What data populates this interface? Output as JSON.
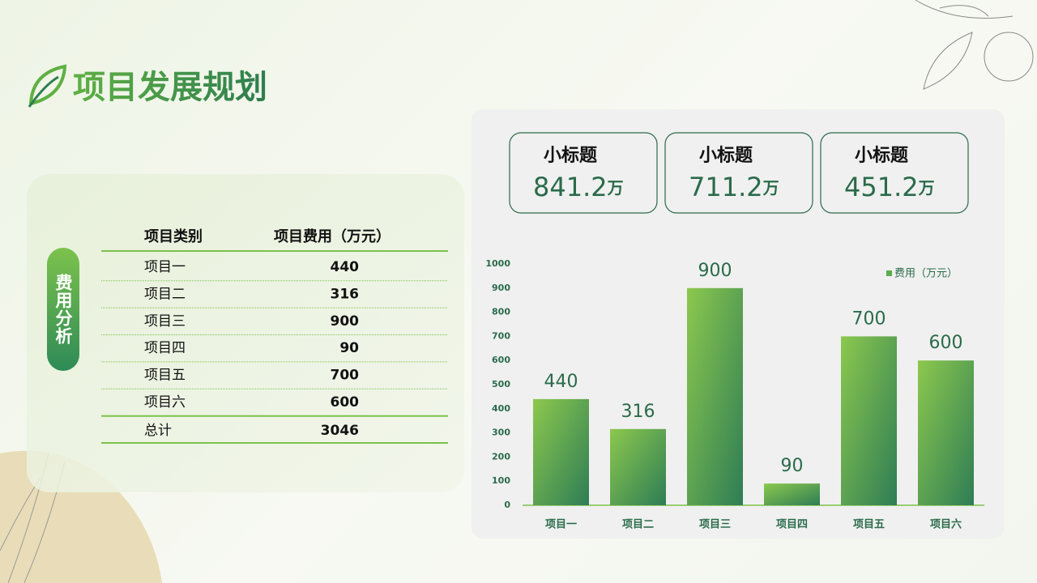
{
  "header": {
    "title": "项目发展规划"
  },
  "table": {
    "side_label": "费用分析",
    "columns": [
      "项目类别",
      "项目费用（万元）"
    ],
    "rows": [
      [
        "项目一",
        440
      ],
      [
        "项目二",
        316
      ],
      [
        "项目三",
        900
      ],
      [
        "项目四",
        90
      ],
      [
        "项目五",
        700
      ],
      [
        "项目六",
        600
      ]
    ],
    "total": [
      "总计",
      3046
    ]
  },
  "stats": [
    {
      "label": "小标题",
      "value": 841.2,
      "unit": "万"
    },
    {
      "label": "小标题",
      "value": 711.2,
      "unit": "万"
    },
    {
      "label": "小标题",
      "value": 451.2,
      "unit": "万"
    }
  ],
  "chart_data": {
    "type": "bar",
    "categories": [
      "项目一",
      "项目二",
      "项目三",
      "项目四",
      "项目五",
      "项目六"
    ],
    "series": [
      {
        "name": "费用（万元）",
        "color": "#5aae4a",
        "values": [
          440,
          316,
          900,
          90,
          700,
          600
        ]
      }
    ],
    "ylim": [
      0,
      1000
    ],
    "yticks": [
      0,
      100,
      200,
      300,
      400,
      500,
      600,
      700,
      800,
      900,
      1000
    ],
    "grid": false,
    "legend": "top-right"
  }
}
